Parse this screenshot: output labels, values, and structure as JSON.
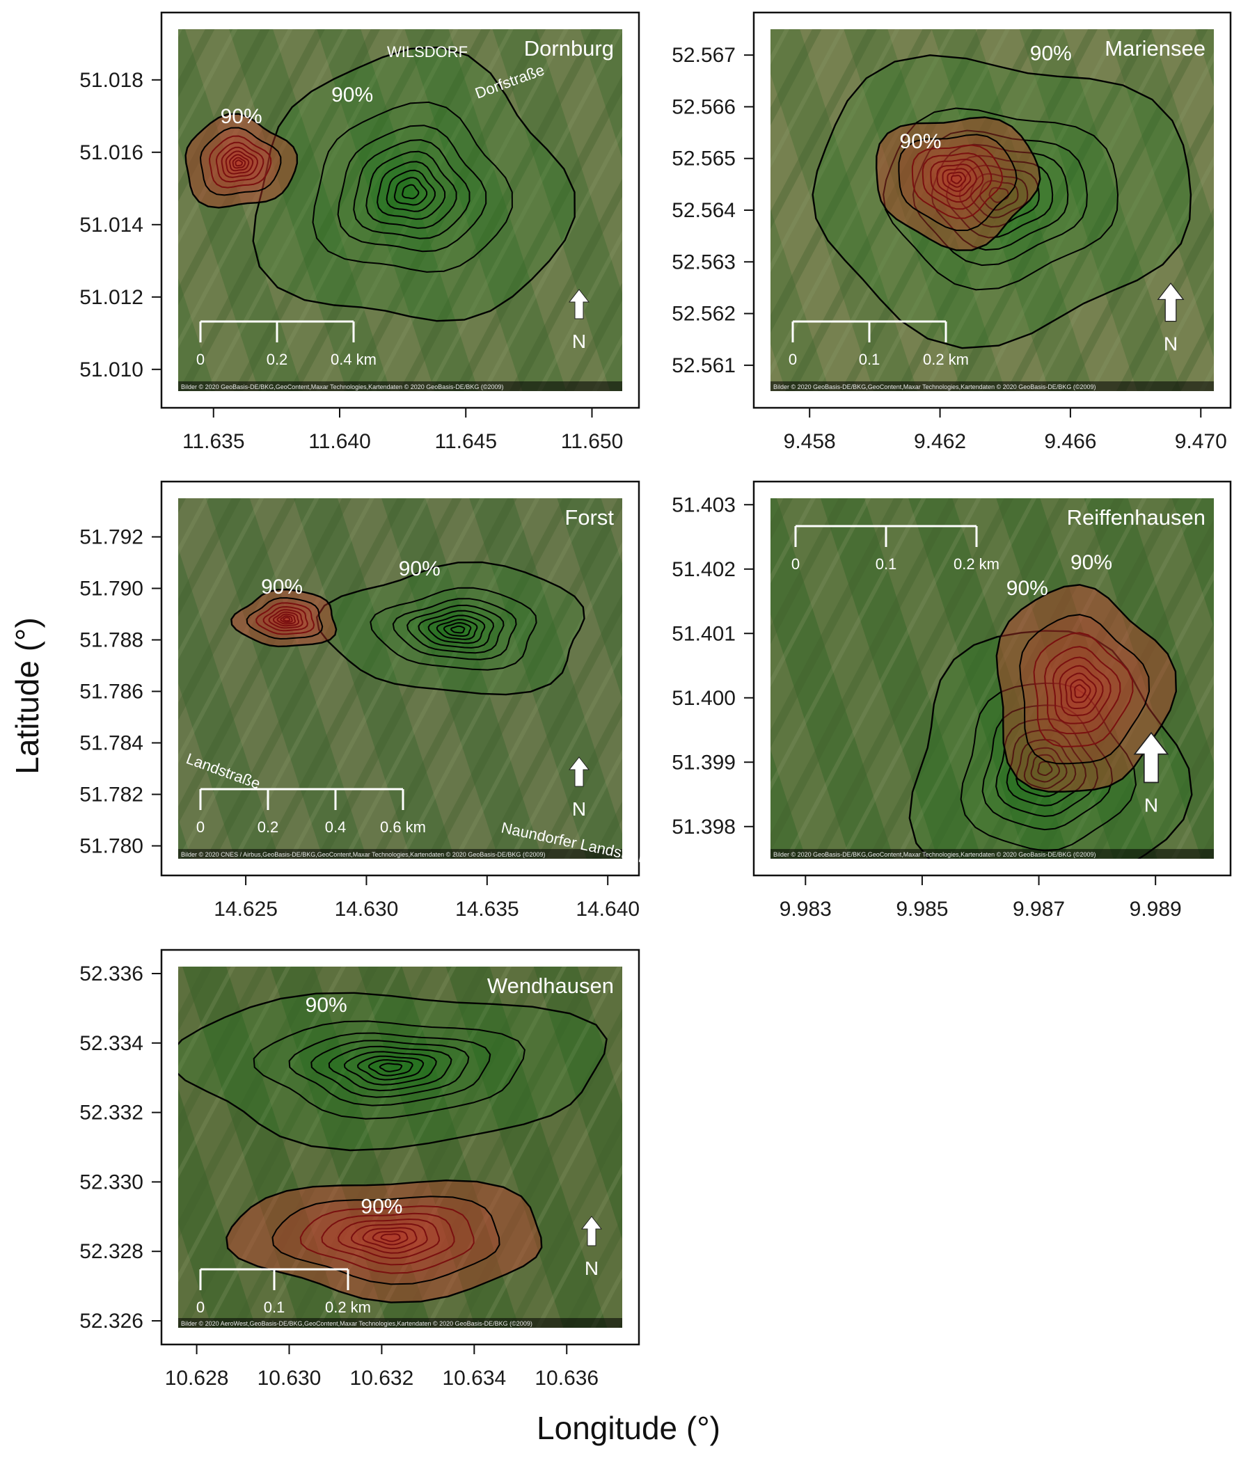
{
  "figure": {
    "xlabel": "Longitude (°)",
    "ylabel": "Latitude (°)"
  },
  "labels": {
    "pct": "90%",
    "north": "N"
  },
  "colors": {
    "red_fill": "#c0392b",
    "red_line": "#7a1010",
    "green_fill": "#1e7a1e",
    "contour": "#000000",
    "satellite_base": "#5f7a45"
  },
  "chart_data": [
    {
      "type": "map",
      "name": "Dornburg",
      "xlim": [
        11.6336,
        11.6512
      ],
      "ylim": [
        51.0094,
        51.0194
      ],
      "xticks": [
        "11.635",
        "11.640",
        "11.645",
        "11.650"
      ],
      "xtick_values": [
        11.635,
        11.64,
        11.645,
        11.65
      ],
      "yticks": [
        "51.010",
        "51.012",
        "51.014",
        "51.016",
        "51.018"
      ],
      "ytick_values": [
        51.01,
        51.012,
        51.014,
        51.016,
        51.018
      ],
      "scale_labels": [
        "0",
        "0.2",
        "0.4 km"
      ],
      "map_labels": [
        "WILSDORF",
        "Dorfstraße"
      ],
      "attribution": "Bilder © 2020 GeoBasis-DE/BKG,GeoContent,Maxar Technologies,Kartendaten © 2020 GeoBasis-DE/BKG (©2009)",
      "kernels": [
        {
          "color": "red",
          "center": [
            11.636,
            51.0157
          ],
          "rx": 0.0022,
          "ry": 0.00125,
          "label_at": [
            11.6361,
            51.0168
          ]
        },
        {
          "color": "green",
          "center": [
            11.6428,
            51.0149
          ],
          "rx": 0.0062,
          "ry": 0.0037,
          "label_at": [
            11.6405,
            51.0174
          ]
        }
      ]
    },
    {
      "type": "map",
      "name": "Mariensee",
      "xlim": [
        9.4568,
        9.4704
      ],
      "ylim": [
        52.5605,
        52.5675
      ],
      "xticks": [
        "9.458",
        "9.462",
        "9.466",
        "9.470"
      ],
      "xtick_values": [
        9.458,
        9.462,
        9.466,
        9.47
      ],
      "yticks": [
        "52.561",
        "52.562",
        "52.563",
        "52.564",
        "52.565",
        "52.566",
        "52.567"
      ],
      "ytick_values": [
        52.561,
        52.562,
        52.563,
        52.564,
        52.565,
        52.566,
        52.567
      ],
      "scale_labels": [
        "0",
        "0.1",
        "0.2 km"
      ],
      "map_labels": [],
      "attribution": "Bilder © 2020 GeoBasis-DE/BKG,GeoContent,Maxar Technologies,Kartendaten © 2020 GeoBasis-DE/BKG (©2009)",
      "kernels": [
        {
          "color": "red",
          "center": [
            9.4625,
            52.5646
          ],
          "rx": 0.0025,
          "ry": 0.00125,
          "label_at": [
            9.4614,
            52.5652
          ]
        },
        {
          "color": "green",
          "center": [
            9.4638,
            52.5643
          ],
          "rx": 0.0058,
          "ry": 0.0027,
          "label_at": [
            9.4654,
            52.5669
          ]
        }
      ]
    },
    {
      "type": "map",
      "name": "Forst",
      "xlim": [
        14.6222,
        14.6406
      ],
      "ylim": [
        51.7795,
        51.7935
      ],
      "xticks": [
        "14.625",
        "14.630",
        "14.635",
        "14.640"
      ],
      "xtick_values": [
        14.625,
        14.63,
        14.635,
        14.64
      ],
      "yticks": [
        "51.780",
        "51.782",
        "51.784",
        "51.786",
        "51.788",
        "51.790",
        "51.792"
      ],
      "ytick_values": [
        51.78,
        51.782,
        51.784,
        51.786,
        51.788,
        51.79,
        51.792
      ],
      "scale_labels": [
        "0",
        "0.2",
        "0.4",
        "0.6 km"
      ],
      "map_labels": [
        "Landstraße",
        "Naundorfer Landstraße"
      ],
      "attribution": "Bilder © 2020 CNES / Airbus,GeoBasis-DE/BKG,GeoContent,Maxar Technologies,Kartendaten © 2020 GeoBasis-DE/BKG (©2009)",
      "kernels": [
        {
          "color": "red",
          "center": [
            14.6267,
            51.7888
          ],
          "rx": 0.0021,
          "ry": 0.0011,
          "label_at": [
            14.6265,
            51.7898
          ]
        },
        {
          "color": "green",
          "center": [
            14.6338,
            51.7884
          ],
          "rx": 0.0054,
          "ry": 0.0025,
          "label_at": [
            14.6322,
            51.7905
          ]
        }
      ]
    },
    {
      "type": "map",
      "name": "Reiffenhausen",
      "xlim": [
        9.9824,
        9.99
      ],
      "ylim": [
        51.3975,
        51.4031
      ],
      "xticks": [
        "9.983",
        "9.985",
        "9.987",
        "9.989"
      ],
      "xtick_values": [
        9.983,
        9.985,
        9.987,
        9.989
      ],
      "yticks": [
        "51.398",
        "51.399",
        "51.400",
        "51.401",
        "51.402",
        "51.403"
      ],
      "ytick_values": [
        51.398,
        51.399,
        51.4,
        51.401,
        51.402,
        51.403
      ],
      "scale_labels": [
        "0",
        "0.1",
        "0.2 km"
      ],
      "map_labels": [],
      "attribution": "Bilder © 2020 GeoBasis-DE/BKG,GeoContent,Maxar Technologies,Kartendaten © 2020 GeoBasis-DE/BKG (©2009)",
      "kernels": [
        {
          "color": "red",
          "center": [
            9.9877,
            51.4001
          ],
          "rx": 0.0015,
          "ry": 0.0016,
          "label_at": [
            9.9868,
            51.4016
          ]
        },
        {
          "color": "green",
          "center": [
            9.9871,
            51.3989
          ],
          "rx": 0.0023,
          "ry": 0.0021,
          "label_at": [
            9.9879,
            51.402
          ]
        }
      ]
    },
    {
      "type": "map",
      "name": "Wendhausen",
      "xlim": [
        10.6276,
        10.6372
      ],
      "ylim": [
        52.3258,
        52.3362
      ],
      "xticks": [
        "10.628",
        "10.630",
        "10.632",
        "10.634",
        "10.636"
      ],
      "xtick_values": [
        10.628,
        10.63,
        10.632,
        10.634,
        10.636
      ],
      "yticks": [
        "52.326",
        "52.328",
        "52.330",
        "52.332",
        "52.334",
        "52.336"
      ],
      "ytick_values": [
        52.326,
        52.328,
        52.33,
        52.332,
        52.334,
        52.336
      ],
      "scale_labels": [
        "0",
        "0.1",
        "0.2 km"
      ],
      "map_labels": [],
      "attribution": "Bilder © 2020 AeroWest,GeoBasis-DE/BKG,GeoContent,Maxar Technologies,Kartendaten © 2020 GeoBasis-DE/BKG (©2009)",
      "kernels": [
        {
          "color": "red",
          "center": [
            10.6322,
            52.3284
          ],
          "rx": 0.0034,
          "ry": 0.0017,
          "label_at": [
            10.632,
            52.3291
          ]
        },
        {
          "color": "green",
          "center": [
            10.6322,
            52.3333
          ],
          "rx": 0.0046,
          "ry": 0.0022,
          "label_at": [
            10.6308,
            52.3349
          ]
        }
      ]
    }
  ]
}
